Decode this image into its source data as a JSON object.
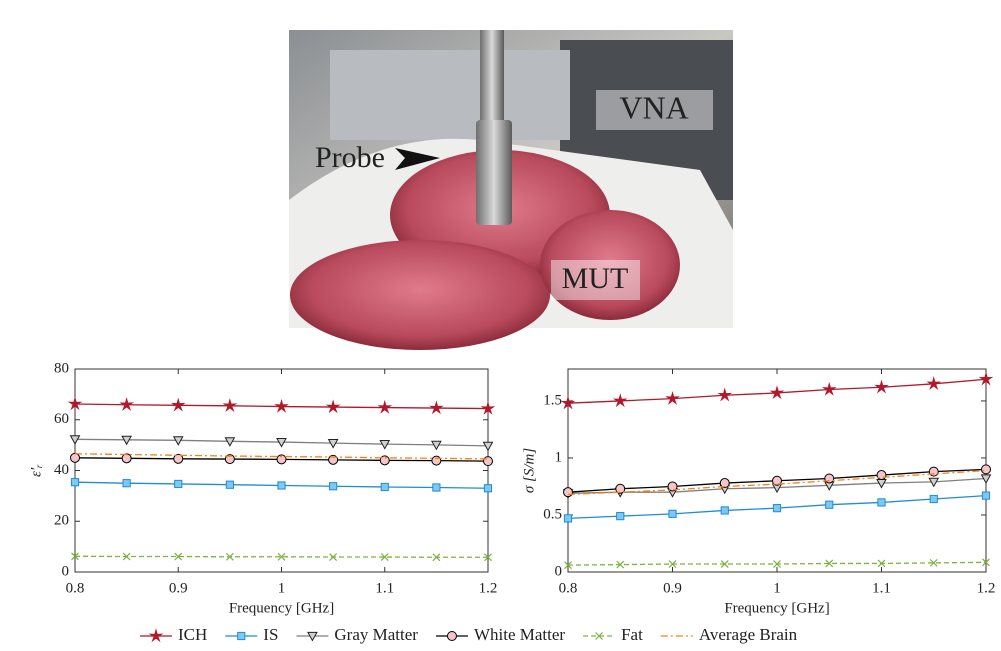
{
  "photo": {
    "labels": [
      "VNA",
      "Probe",
      "MUT"
    ]
  },
  "chart_data": [
    {
      "type": "line",
      "xlabel": "Frequency [GHz]",
      "ylabel": "ε′ᵣ",
      "x": [
        0.8,
        0.85,
        0.9,
        0.95,
        1,
        1.05,
        1.1,
        1.15,
        1.2
      ],
      "xlim": [
        0.8,
        1.2
      ],
      "xticks": [
        0.8,
        0.9,
        1,
        1.1,
        1.2
      ],
      "ylim": [
        0,
        80
      ],
      "yticks": [
        0,
        20,
        40,
        60,
        80
      ],
      "series": [
        {
          "name": "ICH",
          "color": "#b2182b",
          "marker": "star",
          "dash": "solid",
          "values": [
            66.2,
            65.9,
            65.7,
            65.5,
            65.2,
            65.0,
            64.8,
            64.6,
            64.4
          ]
        },
        {
          "name": "IS",
          "color": "#1f8dd6",
          "marker": "square",
          "dash": "solid",
          "values": [
            35.4,
            35.0,
            34.7,
            34.4,
            34.1,
            33.8,
            33.5,
            33.3,
            33.0
          ]
        },
        {
          "name": "Gray Matter",
          "color": "#7f7f7f",
          "marker": "triangle-down",
          "dash": "solid",
          "values": [
            52.3,
            52.1,
            51.9,
            51.5,
            51.2,
            50.8,
            50.4,
            50.1,
            49.7
          ]
        },
        {
          "name": "White Matter",
          "color": "#000000",
          "marker": "circle",
          "dash": "solid",
          "values": [
            45.0,
            44.8,
            44.6,
            44.5,
            44.4,
            44.2,
            44.0,
            43.9,
            43.7
          ]
        },
        {
          "name": "Fat",
          "color": "#7cb342",
          "marker": "x",
          "dash": "dashed",
          "values": [
            6.2,
            6.1,
            6.1,
            6.0,
            6.0,
            5.9,
            5.9,
            5.8,
            5.8
          ]
        },
        {
          "name": "Average Brain",
          "color": "#ff7f0e",
          "marker": "none",
          "dash": "dashdot",
          "values": [
            46.6,
            46.3,
            46.0,
            45.7,
            45.5,
            45.3,
            45.0,
            44.8,
            44.6
          ]
        }
      ]
    },
    {
      "type": "line",
      "xlabel": "Frequency [GHz]",
      "ylabel": "σ [S/m]",
      "x": [
        0.8,
        0.85,
        0.9,
        0.95,
        1,
        1.05,
        1.1,
        1.15,
        1.2
      ],
      "xlim": [
        0.8,
        1.2
      ],
      "xticks": [
        0.8,
        0.9,
        1,
        1.1,
        1.2
      ],
      "ylim": [
        0,
        1.78
      ],
      "yticks": [
        0,
        0.5,
        1,
        1.5
      ],
      "series": [
        {
          "color": "#b2182b",
          "marker": "star",
          "dash": "solid",
          "values": [
            1.48,
            1.5,
            1.52,
            1.55,
            1.57,
            1.6,
            1.62,
            1.65,
            1.69
          ]
        },
        {
          "color": "#1f8dd6",
          "marker": "square",
          "dash": "solid",
          "values": [
            0.47,
            0.49,
            0.51,
            0.54,
            0.56,
            0.59,
            0.61,
            0.64,
            0.67
          ]
        },
        {
          "color": "#7f7f7f",
          "marker": "triangle-down",
          "dash": "solid",
          "values": [
            0.69,
            0.7,
            0.7,
            0.73,
            0.74,
            0.76,
            0.78,
            0.79,
            0.82
          ]
        },
        {
          "color": "#000000",
          "marker": "circle",
          "dash": "solid",
          "values": [
            0.7,
            0.73,
            0.75,
            0.78,
            0.8,
            0.82,
            0.85,
            0.88,
            0.9
          ]
        },
        {
          "color": "#7cb342",
          "marker": "x",
          "dash": "dashed",
          "values": [
            0.06,
            0.065,
            0.07,
            0.07,
            0.07,
            0.075,
            0.075,
            0.08,
            0.085
          ]
        },
        {
          "color": "#ff7f0e",
          "marker": "none",
          "dash": "dashdot",
          "values": [
            0.68,
            0.7,
            0.72,
            0.75,
            0.77,
            0.8,
            0.83,
            0.86,
            0.89
          ]
        }
      ]
    }
  ]
}
